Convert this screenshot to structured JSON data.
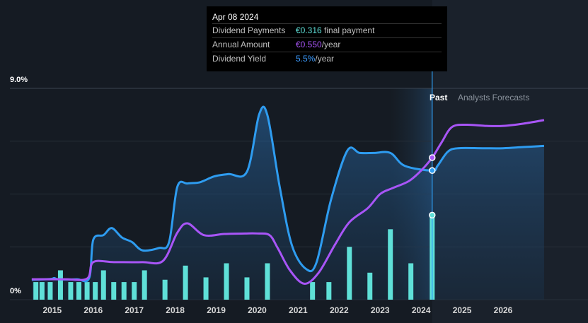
{
  "tooltip": {
    "date": "Apr 08 2024",
    "rows": [
      {
        "label": "Dividend Payments",
        "value": "€0.316",
        "suffix": " final payment",
        "color": "#5fe0d8"
      },
      {
        "label": "Annual Amount",
        "value": "€0.550",
        "suffix": "/year",
        "color": "#a855f7"
      },
      {
        "label": "Dividend Yield",
        "value": "5.5%",
        "suffix": "/year",
        "color": "#3b9bff"
      }
    ]
  },
  "segments": {
    "past": "Past",
    "forecast": "Analysts Forecasts"
  },
  "chart_data": {
    "type": "line",
    "y_axis": {
      "min_label": "0%",
      "max_label": "9.0%",
      "range": [
        0,
        9.0
      ]
    },
    "x_ticks": [
      "2015",
      "2016",
      "2017",
      "2018",
      "2019",
      "2020",
      "2021",
      "2022",
      "2023",
      "2024",
      "2025",
      "2026"
    ],
    "x_range": [
      2014.45,
      2027.45
    ],
    "hover_x": 2024.27,
    "colors": {
      "yield": "#2e9cf0",
      "annual": "#a855f7",
      "payments": "#5fe0d8"
    },
    "series": [
      {
        "key": "yield",
        "points": [
          [
            2014.5,
            0.85
          ],
          [
            2014.95,
            0.88
          ],
          [
            2015.05,
            0.92
          ],
          [
            2015.15,
            0.87
          ],
          [
            2015.6,
            0.87
          ],
          [
            2015.9,
            0.92
          ],
          [
            2016.0,
            2.55
          ],
          [
            2016.25,
            2.75
          ],
          [
            2016.45,
            3.05
          ],
          [
            2016.7,
            2.65
          ],
          [
            2016.95,
            2.45
          ],
          [
            2017.2,
            2.1
          ],
          [
            2017.6,
            2.2
          ],
          [
            2017.85,
            2.45
          ],
          [
            2018.05,
            4.8
          ],
          [
            2018.3,
            4.95
          ],
          [
            2018.6,
            5.0
          ],
          [
            2018.95,
            5.25
          ],
          [
            2019.3,
            5.35
          ],
          [
            2019.75,
            5.45
          ],
          [
            2020.05,
            7.9
          ],
          [
            2020.25,
            7.85
          ],
          [
            2020.55,
            4.8
          ],
          [
            2020.85,
            2.3
          ],
          [
            2021.2,
            1.3
          ],
          [
            2021.45,
            1.6
          ],
          [
            2021.8,
            4.25
          ],
          [
            2022.2,
            6.35
          ],
          [
            2022.5,
            6.25
          ],
          [
            2022.85,
            6.25
          ],
          [
            2023.25,
            6.25
          ],
          [
            2023.6,
            5.7
          ],
          [
            2024.27,
            5.5
          ],
          [
            2024.4,
            5.7
          ],
          [
            2024.65,
            6.3
          ],
          [
            2024.9,
            6.45
          ],
          [
            2025.5,
            6.45
          ],
          [
            2026.0,
            6.45
          ],
          [
            2026.5,
            6.5
          ],
          [
            2027.0,
            6.55
          ]
        ]
      },
      {
        "key": "annual",
        "points": [
          [
            2014.5,
            0.87
          ],
          [
            2015.3,
            0.87
          ],
          [
            2015.85,
            0.9
          ],
          [
            2016.0,
            1.6
          ],
          [
            2016.5,
            1.6
          ],
          [
            2017.2,
            1.6
          ],
          [
            2017.7,
            1.65
          ],
          [
            2018.05,
            2.85
          ],
          [
            2018.3,
            3.25
          ],
          [
            2018.7,
            2.75
          ],
          [
            2019.2,
            2.8
          ],
          [
            2019.7,
            2.82
          ],
          [
            2020.0,
            2.82
          ],
          [
            2020.3,
            2.75
          ],
          [
            2020.5,
            2.2
          ],
          [
            2020.8,
            1.25
          ],
          [
            2021.15,
            0.68
          ],
          [
            2021.5,
            1.15
          ],
          [
            2021.9,
            2.35
          ],
          [
            2022.25,
            3.3
          ],
          [
            2022.7,
            3.9
          ],
          [
            2023.0,
            4.5
          ],
          [
            2023.3,
            4.75
          ],
          [
            2023.7,
            5.05
          ],
          [
            2024.0,
            5.5
          ],
          [
            2024.27,
            6.05
          ],
          [
            2024.5,
            6.7
          ],
          [
            2024.75,
            7.35
          ],
          [
            2025.1,
            7.45
          ],
          [
            2025.6,
            7.4
          ],
          [
            2026.0,
            7.4
          ],
          [
            2026.5,
            7.5
          ],
          [
            2027.0,
            7.65
          ]
        ]
      },
      {
        "key": "payments",
        "bars": [
          [
            2014.6,
            0.75
          ],
          [
            2014.75,
            0.75
          ],
          [
            2014.95,
            0.75
          ],
          [
            2015.2,
            1.25
          ],
          [
            2015.45,
            0.75
          ],
          [
            2015.65,
            0.75
          ],
          [
            2015.85,
            0.75
          ],
          [
            2016.05,
            0.75
          ],
          [
            2016.25,
            1.25
          ],
          [
            2016.5,
            0.75
          ],
          [
            2016.75,
            0.75
          ],
          [
            2017.0,
            0.75
          ],
          [
            2017.25,
            1.25
          ],
          [
            2017.75,
            0.85
          ],
          [
            2018.25,
            1.45
          ],
          [
            2018.75,
            0.95
          ],
          [
            2019.25,
            1.55
          ],
          [
            2019.75,
            0.95
          ],
          [
            2020.25,
            1.55
          ],
          [
            2021.35,
            0.75
          ],
          [
            2021.75,
            0.75
          ],
          [
            2022.25,
            2.25
          ],
          [
            2022.75,
            1.15
          ],
          [
            2023.25,
            3.0
          ],
          [
            2023.75,
            1.55
          ],
          [
            2024.27,
            3.6
          ]
        ]
      }
    ]
  }
}
